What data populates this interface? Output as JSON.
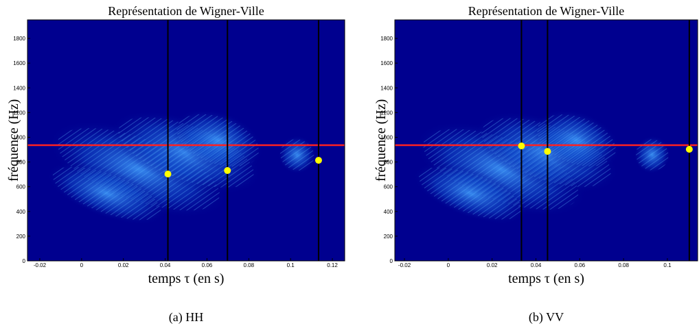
{
  "chart_data": [
    {
      "type": "scatter",
      "title": "Représentation de Wigner-Ville",
      "xlabel": "temps τ (en s)",
      "ylabel": "fréquence (Hz)",
      "caption": "(a) HH",
      "xlim": [
        -0.0259,
        0.1259
      ],
      "ylim": [
        0,
        1950
      ],
      "xticks": [
        -0.02,
        0,
        0.02,
        0.04,
        0.06,
        0.08,
        0.1,
        0.12
      ],
      "yticks": [
        0,
        200,
        400,
        600,
        800,
        1000,
        1200,
        1400,
        1600,
        1800
      ],
      "x": [
        0.0413,
        0.0698,
        0.1134
      ],
      "values": [
        703,
        731,
        814
      ],
      "color": "#ffff00",
      "vlines": {
        "values": [
          0.0413,
          0.0698,
          0.1134
        ],
        "color": "#000000"
      },
      "hline": {
        "value": 936,
        "color": "#ff2020"
      }
    },
    {
      "type": "scatter",
      "title": "Représentation de Wigner-Ville",
      "xlabel": "temps τ (en s)",
      "ylabel": "fréquence (Hz)",
      "caption": "(b) VV",
      "xlim": [
        -0.0244,
        0.1138
      ],
      "ylim": [
        0,
        1950
      ],
      "xticks": [
        -0.02,
        0,
        0.02,
        0.04,
        0.06,
        0.08,
        0.1
      ],
      "yticks": [
        0,
        200,
        400,
        600,
        800,
        1000,
        1200,
        1400,
        1600,
        1800
      ],
      "x": [
        0.0334,
        0.0453,
        0.11
      ],
      "values": [
        930,
        886,
        903
      ],
      "color": "#ffff00",
      "vlines": {
        "values": [
          0.0334,
          0.0453,
          0.11
        ],
        "color": "#000000"
      },
      "hline": {
        "value": 936,
        "color": "#ff2020"
      }
    }
  ]
}
